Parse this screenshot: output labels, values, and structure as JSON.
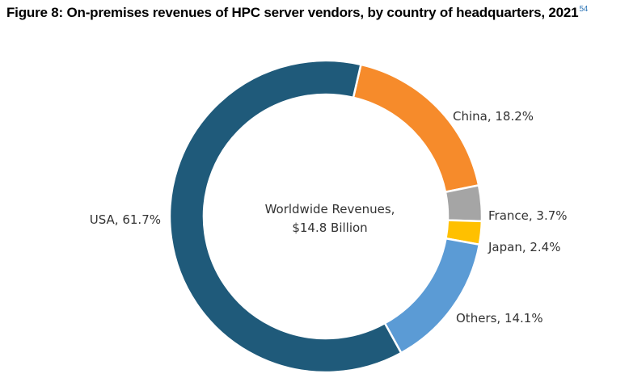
{
  "title": "Figure 8: On-premises revenues of HPC server vendors, by country of headquarters, 2021",
  "footnote_ref": "54",
  "chart_data": {
    "type": "pie",
    "donut": true,
    "title": "Figure 8: On-premises revenues of HPC server vendors, by country of headquarters, 2021",
    "center_text": [
      "Worldwide Revenues,",
      "$14.8 Billion"
    ],
    "slices": [
      {
        "label": "China",
        "value": 18.2,
        "display": "China, 18.2%",
        "color": "#f68b2b"
      },
      {
        "label": "France",
        "value": 3.7,
        "display": "France, 3.7%",
        "color": "#a5a5a5"
      },
      {
        "label": "Japan",
        "value": 2.4,
        "display": "Japan, 2.4%",
        "color": "#ffc000"
      },
      {
        "label": "Others",
        "value": 14.1,
        "display": "Others, 14.1%",
        "color": "#5b9bd5"
      },
      {
        "label": "USA",
        "value": 61.7,
        "display": "USA, 61.7%",
        "color": "#1f5a7a"
      }
    ],
    "start_angle_deg": 13,
    "direction": "clockwise",
    "legend": "none"
  }
}
